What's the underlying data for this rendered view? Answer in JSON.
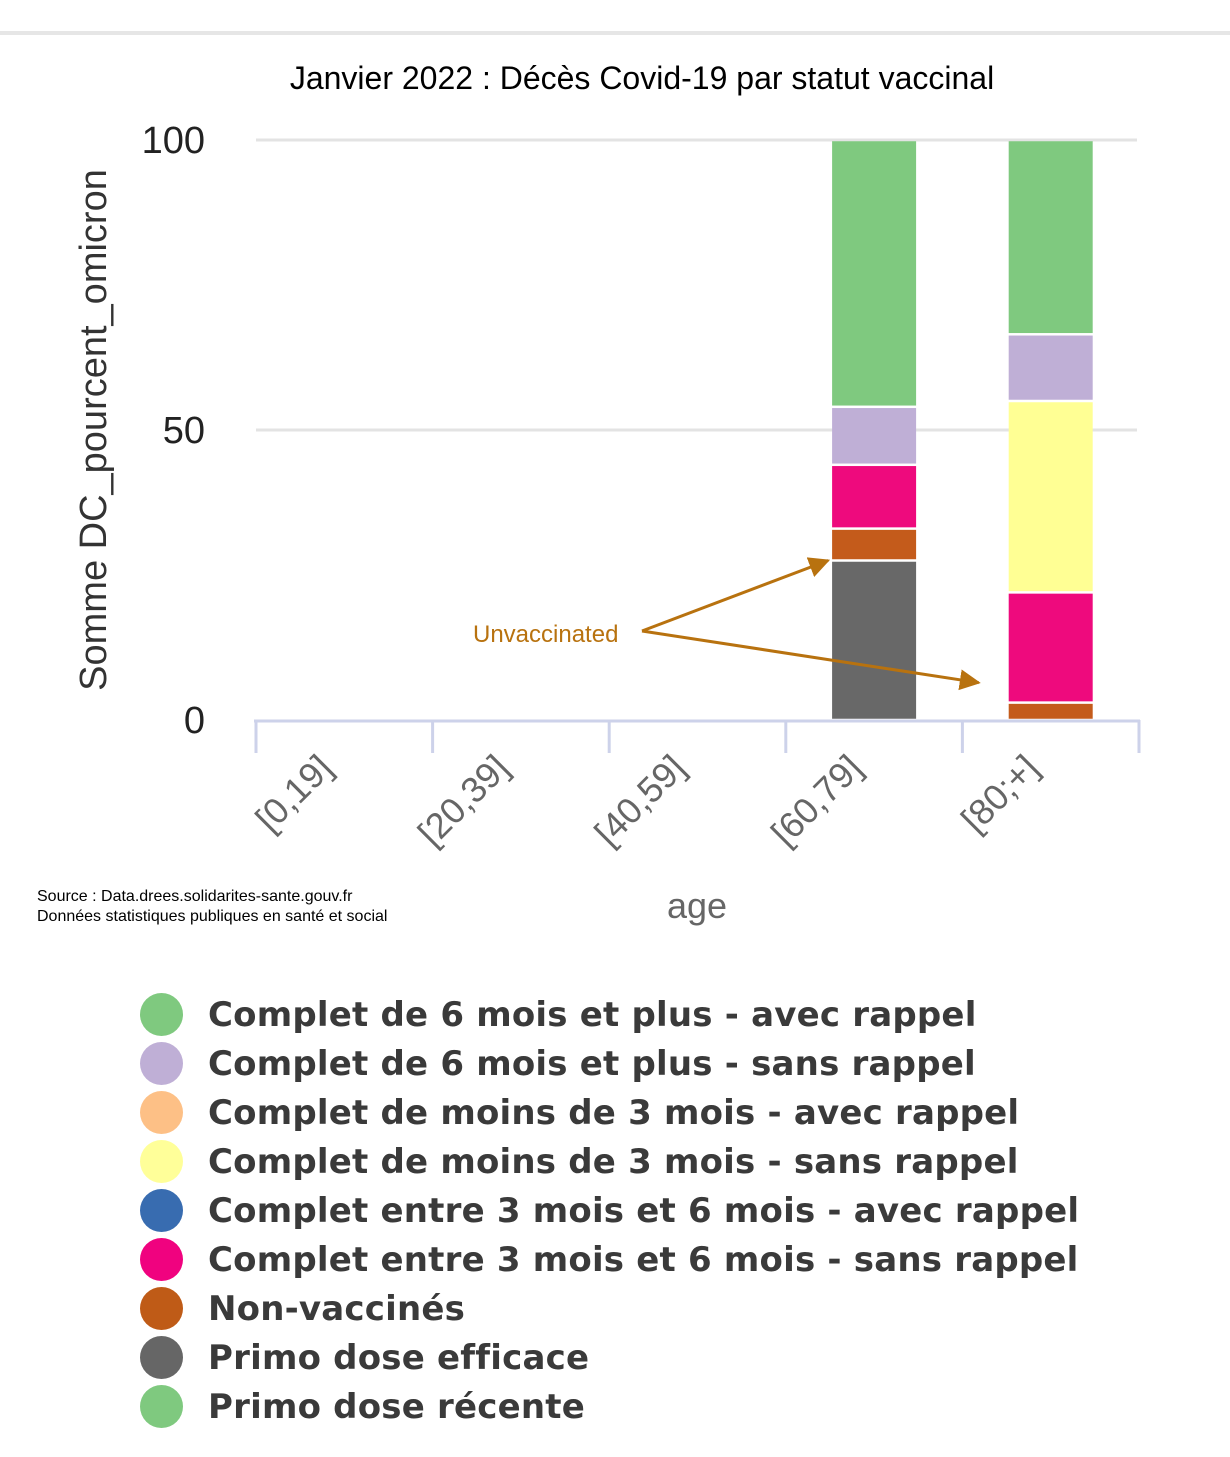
{
  "chart_data": {
    "type": "bar",
    "stacked": true,
    "title": "Janvier 2022 : Décès Covid-19 par statut vaccinal",
    "xlabel": "age",
    "ylabel": "Somme DC_pourcent_omicron",
    "ylim": [
      0,
      100
    ],
    "yticks": [
      0,
      50,
      100
    ],
    "grid": true,
    "categories": [
      "[0,19]",
      "[20,39]",
      "[40,59]",
      "[60,79]",
      "[80;+]"
    ],
    "series": [
      {
        "name": "Primo dose efficace",
        "color": "#686868",
        "values": [
          0,
          0,
          0,
          27.5,
          0
        ]
      },
      {
        "name": "Non-vaccinés",
        "color": "#c45b1b",
        "values": [
          0,
          0,
          0,
          5.5,
          3
        ]
      },
      {
        "name": "Complet entre 3 mois et 6 mois - sans rappel",
        "color": "#ee0a7d",
        "values": [
          0,
          0,
          0,
          11,
          19
        ]
      },
      {
        "name": "Complet de moins de 3 mois - sans rappel",
        "color": "#ffff94",
        "values": [
          0,
          0,
          0,
          0,
          33
        ]
      },
      {
        "name": "Complet de 6 mois et plus - sans rappel",
        "color": "#bfafd6",
        "values": [
          0,
          0,
          0,
          10,
          11.5
        ]
      },
      {
        "name": "Complet de 6 mois et plus - avec rappel",
        "color": "#7fc97f",
        "values": [
          0,
          0,
          0,
          46,
          33.5
        ]
      }
    ],
    "annotation": {
      "text": "Unvaccinated",
      "color": "#b8720f",
      "targets": [
        "[60,79]",
        "[80;+]"
      ]
    }
  },
  "source": {
    "line1": "Source : Data.drees.solidarites-sante.gouv.fr",
    "line2": "Données statistiques publiques en santé et social"
  },
  "legend": [
    {
      "label": "Complet de 6 mois et plus - avec rappel",
      "color": "#7fc97f"
    },
    {
      "label": "Complet de 6 mois et plus - sans rappel",
      "color": "#bfafd6"
    },
    {
      "label": "Complet de moins de 3 mois - avec rappel",
      "color": "#fdc086"
    },
    {
      "label": "Complet de moins de 3 mois - sans rappel",
      "color": "#ffff99"
    },
    {
      "label": "Complet entre 3 mois et 6 mois - avec rappel",
      "color": "#386cb0"
    },
    {
      "label": "Complet entre 3 mois et 6 mois - sans rappel",
      "color": "#f0027f"
    },
    {
      "label": "Non-vaccinés",
      "color": "#bf5b17"
    },
    {
      "label": "Primo dose efficace",
      "color": "#666666"
    },
    {
      "label": "Primo dose récente",
      "color": "#7fc97f"
    }
  ]
}
